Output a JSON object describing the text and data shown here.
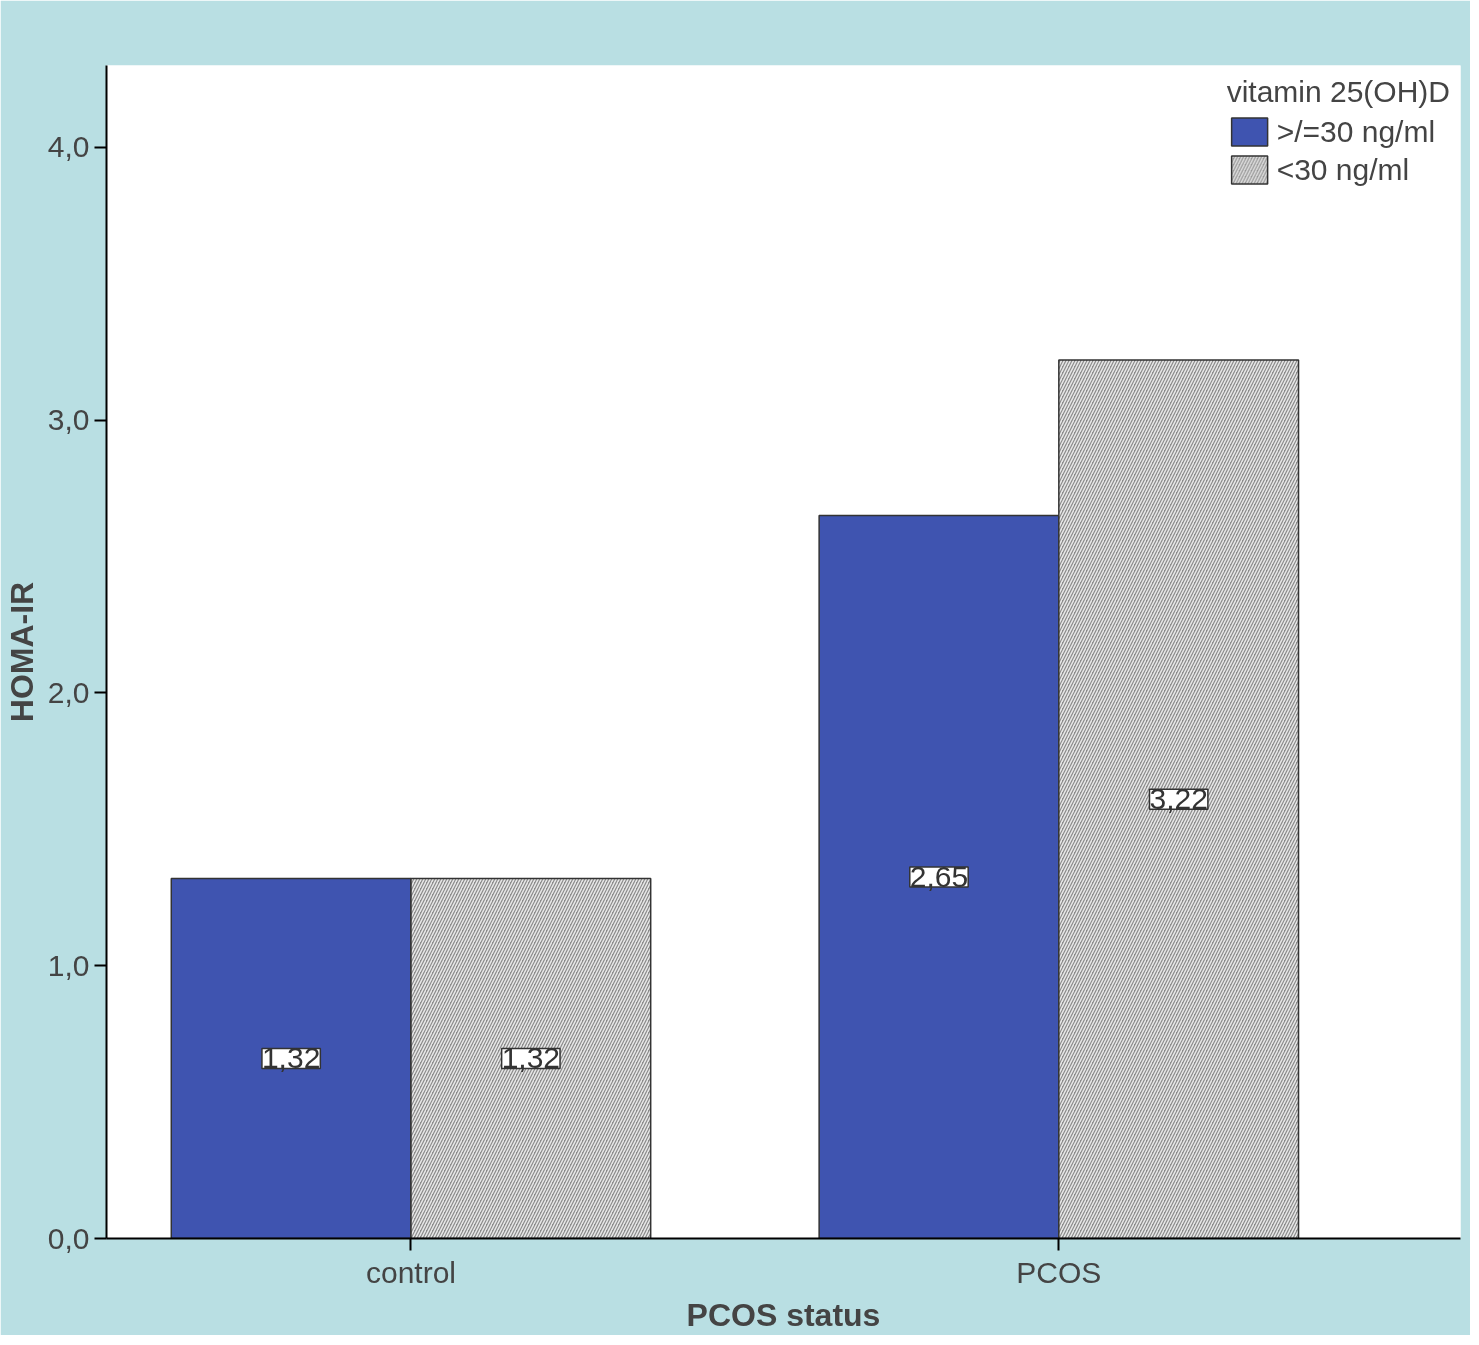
{
  "chart_data": {
    "type": "bar",
    "xlabel": "PCOS status",
    "ylabel": "HOMA-IR",
    "legend_title": "vitamin 25(OH)D",
    "categories": [
      "control",
      "PCOS"
    ],
    "series": [
      {
        "name": ">/=30 ng/ml",
        "color": "#3f54b0",
        "values": [
          1.32,
          2.65
        ],
        "value_labels": [
          "1,32",
          "2,65"
        ]
      },
      {
        "name": "<30 ng/ml",
        "color": "#8c8c8c",
        "values": [
          1.32,
          3.22
        ],
        "value_labels": [
          "1,32",
          "3,22"
        ]
      }
    ],
    "ylim": [
      0,
      4.3
    ],
    "yticks": [
      {
        "value": 0,
        "label": "0,0"
      },
      {
        "value": 1,
        "label": "1,0"
      },
      {
        "value": 2,
        "label": "2,0"
      },
      {
        "value": 3,
        "label": "3,0"
      },
      {
        "value": 4,
        "label": "4,0"
      }
    ],
    "grid": false,
    "legend": "top right"
  }
}
